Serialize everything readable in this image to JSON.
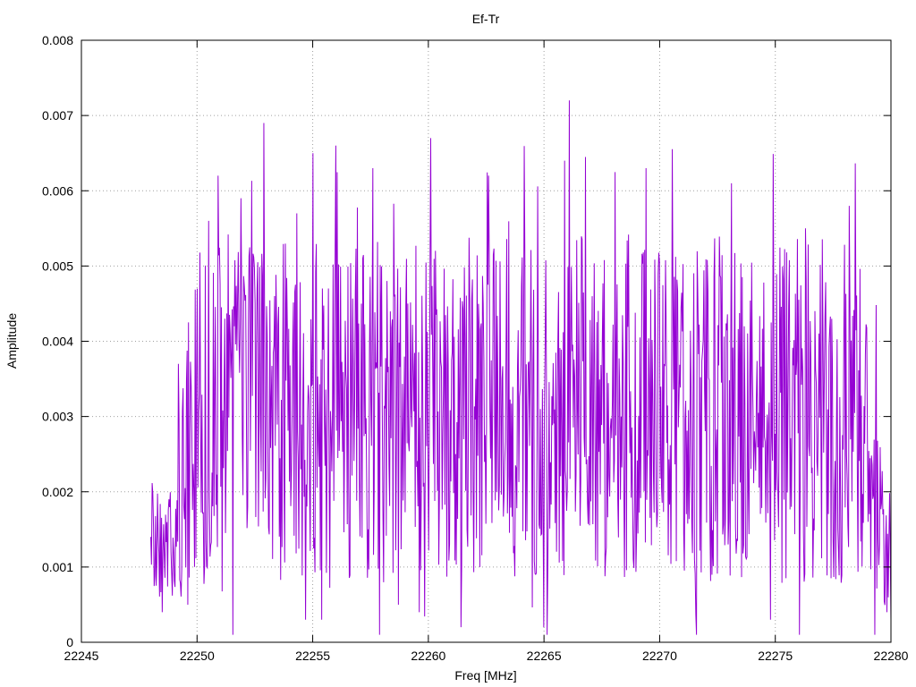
{
  "chart_data": {
    "type": "line",
    "title": "Ef-Tr",
    "xlabel": "Freq [MHz]",
    "ylabel": "Amplitude",
    "xlim": [
      22245,
      22280
    ],
    "ylim": [
      0,
      0.008
    ],
    "xticks": [
      "22245",
      "22250",
      "22255",
      "22260",
      "22265",
      "22270",
      "22275",
      "22280"
    ],
    "yticks": [
      "0",
      "0.001",
      "0.002",
      "0.003",
      "0.004",
      "0.005",
      "0.006",
      "0.007",
      "0.008"
    ],
    "grid": true,
    "series_color": "#9400d3",
    "series": [
      {
        "x_start": 22248.0,
        "x_end": 22280.0,
        "summary": {
          "min": 0.0001,
          "max": 0.0072,
          "peak_x": 22266.1
        },
        "sample_points": [
          [
            22248.0,
            0.0014
          ],
          [
            22248.5,
            0.0004
          ],
          [
            22248.8,
            0.0019
          ],
          [
            22249.2,
            0.0037
          ],
          [
            22249.6,
            0.0005
          ],
          [
            22250.0,
            0.0047
          ],
          [
            22250.5,
            0.0056
          ],
          [
            22250.9,
            0.0062
          ],
          [
            22251.9,
            0.0059
          ],
          [
            22252.9,
            0.0069
          ],
          [
            22254.3,
            0.0057
          ],
          [
            22254.7,
            0.0003
          ],
          [
            22255.0,
            0.0065
          ],
          [
            22255.4,
            0.0003
          ],
          [
            22256.0,
            0.0066
          ],
          [
            22257.6,
            0.0063
          ],
          [
            22258.7,
            0.0005
          ],
          [
            22259.6,
            0.0004
          ],
          [
            22260.1,
            0.0067
          ],
          [
            22261.4,
            0.0002
          ],
          [
            22262.6,
            0.0062
          ],
          [
            22265.0,
            0.0002
          ],
          [
            22265.9,
            0.0064
          ],
          [
            22266.1,
            0.0072
          ],
          [
            22269.4,
            0.0063
          ],
          [
            22271.6,
            0.0001
          ],
          [
            22273.1,
            0.0061
          ],
          [
            22274.8,
            0.0003
          ],
          [
            22276.3,
            0.0055
          ],
          [
            22278.2,
            0.0058
          ],
          [
            22279.0,
            0.0016
          ],
          [
            22279.5,
            0.0013
          ],
          [
            22280.0,
            0.0003
          ]
        ]
      }
    ]
  }
}
